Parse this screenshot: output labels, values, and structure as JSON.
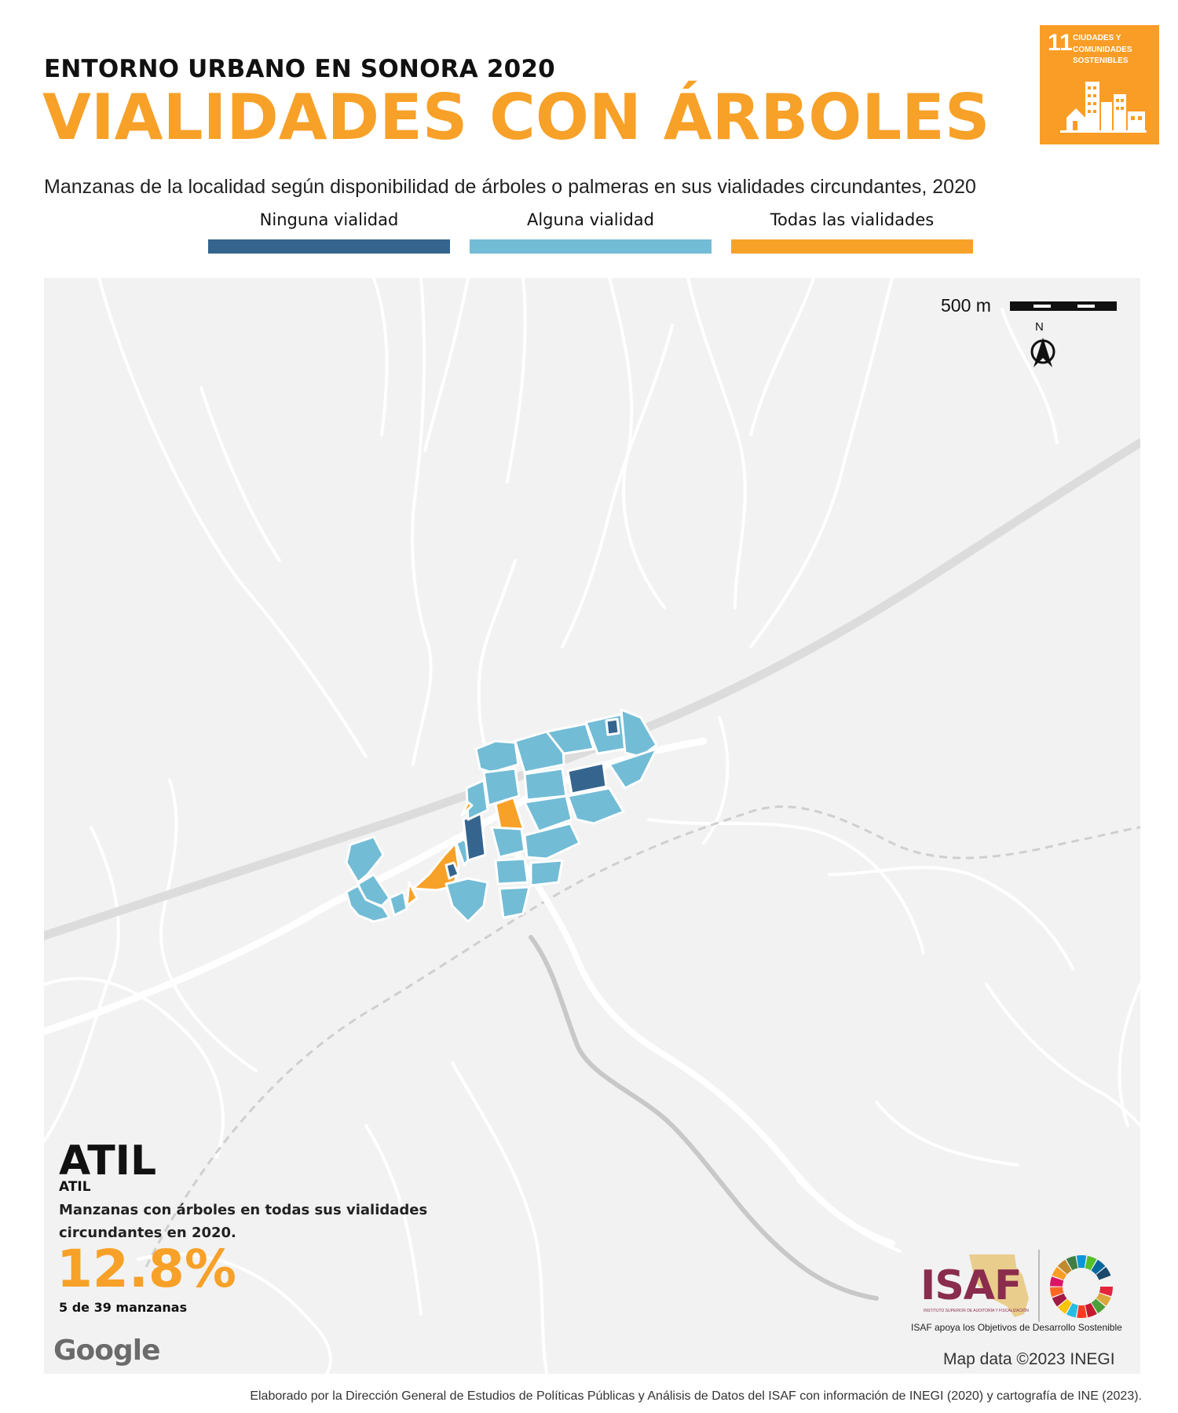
{
  "header": {
    "supertitle": "ENTORNO URBANO EN SONORA 2020",
    "title": "VIALIDADES CON ÁRBOLES",
    "subtitle": "Manzanas de la localidad según disponibilidad de árboles o palmeras en sus vialidades circundantes, 2020"
  },
  "sdg_badge": {
    "number": "11",
    "text": "CIUDADES Y COMUNIDADES SOSTENIBLES",
    "color": "#f99d26"
  },
  "legend": [
    {
      "label": "Ninguna vialidad",
      "color": "#35658f"
    },
    {
      "label": "Alguna vialidad",
      "color": "#72bcd6"
    },
    {
      "label": "Todas las vialidades",
      "color": "#f7a128"
    }
  ],
  "map": {
    "scale_label": "500 m",
    "north_label": "N",
    "background": "#f2f2f2"
  },
  "panel": {
    "locality_name": "ATIL",
    "locality_sub": "ATIL",
    "description": "Manzanas con árboles en todas sus vialidades circundantes en 2020.",
    "percentage": "12.8%",
    "count_text": "5 de 39 manzanas"
  },
  "attribution": {
    "google": "Google",
    "map_data": "Map data ©2023 INEGI"
  },
  "isaf": {
    "logo_text": "ISAF",
    "logo_small": "INSTITUTO SUPERIOR DE AUDITORÍA Y FISCALIZACIÓN",
    "caption": "ISAF apoya los Objetivos de Desarrollo Sostenible"
  },
  "footer": "Elaborado por la Dirección General de Estudios de Políticas Públicas y Análisis de Datos del ISAF con información de INEGI (2020) y cartografía de INE (2023)."
}
